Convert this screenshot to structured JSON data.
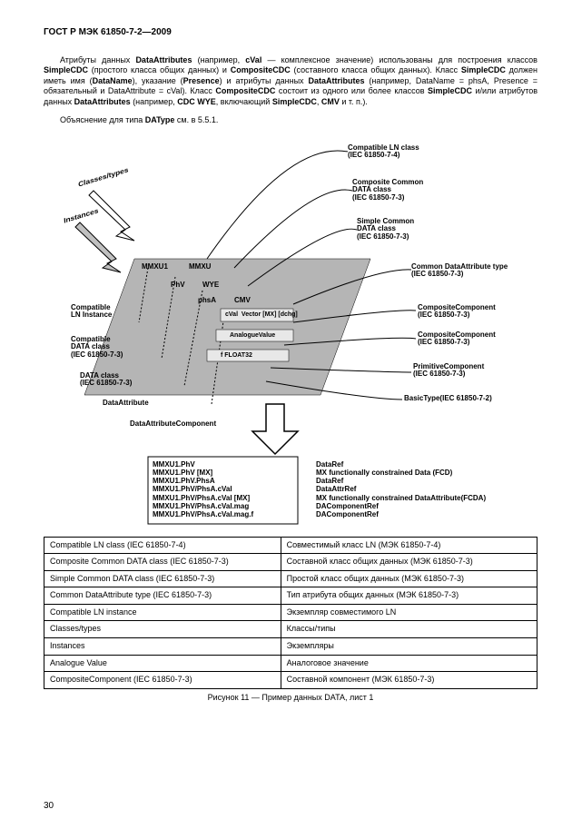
{
  "header": "ГОСТ Р МЭК 61850-7-2—2009",
  "p1_a": "Атрибуты данных ",
  "p1_b": "DataAttributes",
  "p1_c": " (например, ",
  "p1_d": "cVal",
  "p1_e": " — комплексное значение) использованы для построения классов ",
  "p1_f": "SimpleCDC",
  "p1_g": " (простого класса общих данных) и ",
  "p1_h": "CompositeCDC",
  "p1_i": " (составного класса общих данных). Класс ",
  "p1_j": "SimpleCDC",
  "p1_k": " должен иметь имя (",
  "p1_l": "DataName",
  "p1_m": "), указание (",
  "p1_n": "Presence",
  "p1_o": ") и атрибуты данных ",
  "p1_p": "DataAttributes",
  "p1_q": " (например, DataName = phsA, Presence = обязательный и DataAttribute = cVal). Класс ",
  "p1_r": "CompositeCDC",
  "p1_s": " состоит из одного или более классов ",
  "p1_t": "SimpleCDC",
  "p1_u": " и/или атрибутов данных ",
  "p1_v": "DataAttributes",
  "p1_w": " (например, ",
  "p1_x": "CDC WYE",
  "p1_y": ", включающий ",
  "p1_z": "SimpleCDC",
  "p1_aa": ", ",
  "p1_ab": "CMV",
  "p1_ac": " и т. п.).",
  "p2_a": "Объяснение для типа ",
  "p2_b": "DAType",
  "p2_c": " см. в 5.5.1.",
  "diagram": {
    "top_right1": "Compatible LN class",
    "top_right1b": "(IEC 61850-7-4)",
    "top_right2": "Composite Common",
    "top_right2b": "DATA class",
    "top_right2c": "(IEC 61850-7-3)",
    "top_right3": "Simple Common",
    "top_right3b": "DATA class",
    "top_right3c": "(IEC 61850-7-3)",
    "right1": "Common DataAttribute type",
    "right1b": "(IEC 61850-7-3)",
    "right2": "CompositeComponent",
    "right2b": "(IEC 61850-7-3)",
    "right3": "CompositeComponent",
    "right3b": "(IEC 61850-7-3)",
    "right4": "PrimitiveComponent",
    "right4b": "(IEC 61850-7-3)",
    "right5": "BasicType(IEC 61850-7-2)",
    "left_obl1": "Classes/types",
    "left_obl2": "Instances",
    "left1": "Compatible",
    "left1b": "LN Instance",
    "left2": "Compatible",
    "left2b": "DATA class",
    "left2c": "(IEC 61850-7-3)",
    "left3": "DATA class",
    "left3b": "(IEC 61850-7-3)",
    "left4": "DataAttribute",
    "left5": "DataAttributeComponent",
    "plane_mmxu": "MMXU1",
    "plane_mmxu2": "MMXU",
    "plane_phv": "PhV",
    "plane_wye": "WYE",
    "plane_phsa": "phsA",
    "plane_cmv": "CMV",
    "plane_cval": "cVal",
    "plane_vector": "Vector  [MX] [dchg]",
    "plane_analog": "AnalogueValue",
    "plane_float": "f     FLOAT32",
    "box1_l1": "MMXU1.PhV",
    "box1_l2": "MMXU1.PhV [MX]",
    "box1_l3": "MMXU1.PhV.PhsA",
    "box1_l4": "MMXU1.PhV/PhsA.cVal",
    "box1_l5": "MMXU1.PhV/PhsA.cVal [MX]",
    "box1_l6": "MMXU1.PhV/PhsA.cVal.mag",
    "box1_l7": "MMXU1.PhV/PhsA.cVal.mag.f",
    "box2_l1": "DataRef",
    "box2_l2": "MX functionally constrained Data (FCD)",
    "box2_l3": "DataRef",
    "box2_l4": "DataAttrRef",
    "box2_l5": "MX functionally constrained DataAttribute(FCDA)",
    "box2_l6": "DAComponentRef",
    "box2_l7": "DAComponentRef"
  },
  "table": {
    "rows": [
      [
        "Compatible LN class (IEC 61850-7-4)",
        "Совместимый класс LN (МЭК 61850-7-4)"
      ],
      [
        "Composite Common DATA class (IEC 61850-7-3)",
        "Составной класс общих данных (МЭК 61850-7-3)"
      ],
      [
        "Simple Common DATA class (IEC 61850-7-3)",
        "Простой класс общих данных (МЭК 61850-7-3)"
      ],
      [
        "Common DataAttribute type (IEC 61850-7-3)",
        "Тип атрибута общих данных (МЭК 61850-7-3)"
      ],
      [
        "Compatible LN instance",
        "Экземпляр совместимого LN"
      ],
      [
        "Classes/types",
        "Классы/типы"
      ],
      [
        "Instances",
        "Экземпляры"
      ],
      [
        "Analogue Value",
        "Аналоговое значение"
      ],
      [
        "CompositeComponent (IEC 61850-7-3)",
        "Составной компонент (МЭК 61850-7-3)"
      ]
    ]
  },
  "caption": "Рисунок 11 — Пример данных DATA, лист 1",
  "pagenum": "30"
}
